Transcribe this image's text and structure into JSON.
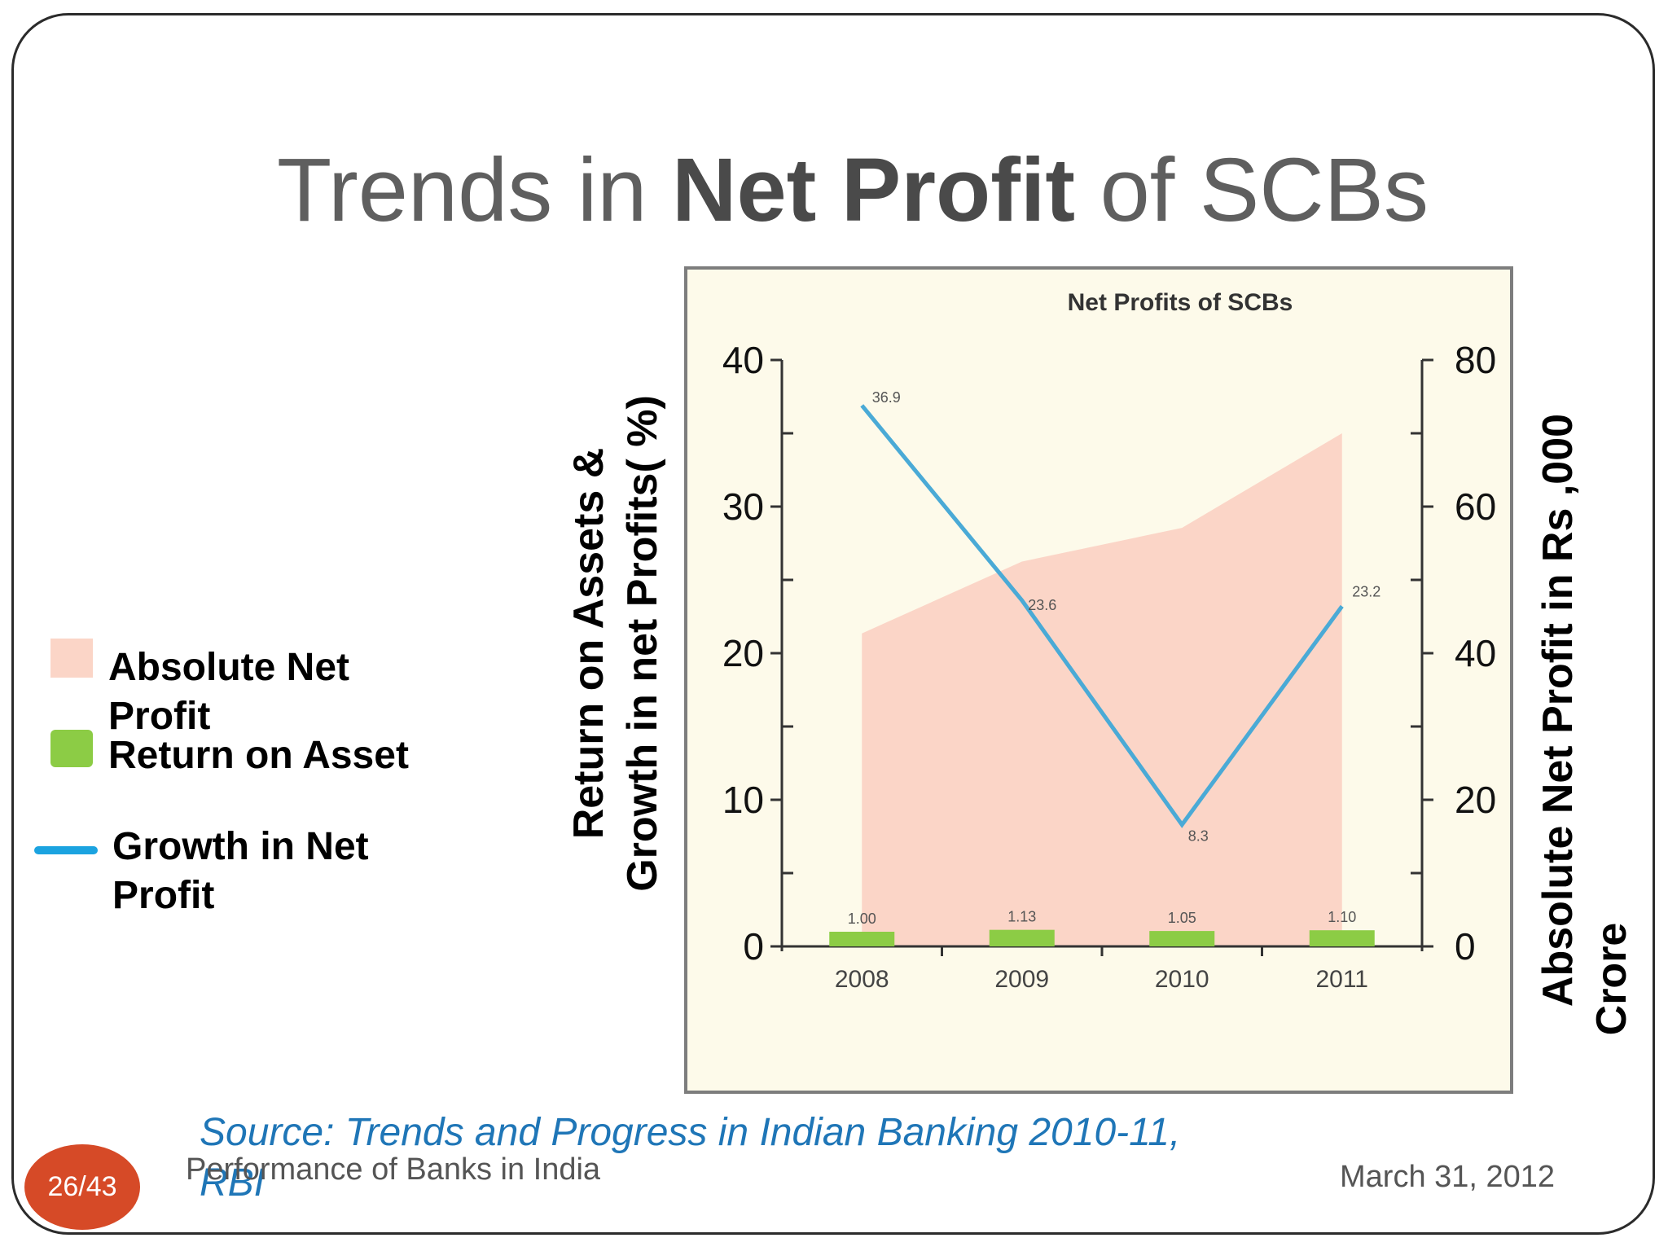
{
  "slide": {
    "title_prefix": "Trends in ",
    "title_bold": "Net Profit",
    "title_suffix": " of SCBs",
    "source": "Source: Trends and Progress in Indian Banking 2010-11, RBI",
    "footer_left": "Performance of Banks in India",
    "footer_right": "March 31, 2012",
    "page_badge": "26/43"
  },
  "legend": {
    "items": [
      {
        "label_line1": "Absolute Net",
        "label_line2": "Profit",
        "color": "#fbd5c7",
        "icon": "filled-square"
      },
      {
        "label_line1": "Return on Asset",
        "label_line2": "",
        "color": "#8ccc45",
        "icon": "rounded-square"
      },
      {
        "label_line1": "Growth in Net",
        "label_line2": "Profit",
        "color": "#1ba3e0",
        "icon": "line"
      }
    ]
  },
  "chart_data": {
    "type": "bar",
    "title": "Net Profits of SCBs",
    "categories": [
      "2008",
      "2009",
      "2010",
      "2011"
    ],
    "left_axis": {
      "label_line1": "Return on Assets &",
      "label_line2": "Growth in net Profits( %)",
      "range": [
        0,
        40
      ],
      "ticks": [
        "0",
        "10",
        "20",
        "30",
        "40"
      ]
    },
    "right_axis": {
      "label_line1": "Absolute Net Profit in Rs ,000",
      "label_line2": "Crore",
      "range": [
        0,
        80
      ],
      "ticks": [
        "0",
        "20",
        "40",
        "60",
        "80"
      ]
    },
    "series": [
      {
        "name": "Absolute Net Profit",
        "kind": "area",
        "axis": "right",
        "color": "#fbd5c7",
        "values": [
          42.7,
          52.5,
          57.1,
          70.0
        ]
      },
      {
        "name": "Return on Asset",
        "kind": "bar",
        "axis": "left",
        "color": "#8ccc45",
        "values": [
          1.0,
          1.13,
          1.05,
          1.1
        ],
        "labels": [
          "1.00",
          "1.13",
          "1.05",
          "1.10"
        ]
      },
      {
        "name": "Growth in Net Profit",
        "kind": "line",
        "axis": "left",
        "color": "#4aaad6",
        "values": [
          36.9,
          23.6,
          8.3,
          23.2
        ],
        "labels": [
          "36.9",
          "23.6",
          "8.3",
          "23.2"
        ]
      }
    ],
    "grid": false,
    "background": "#fdfaea"
  }
}
